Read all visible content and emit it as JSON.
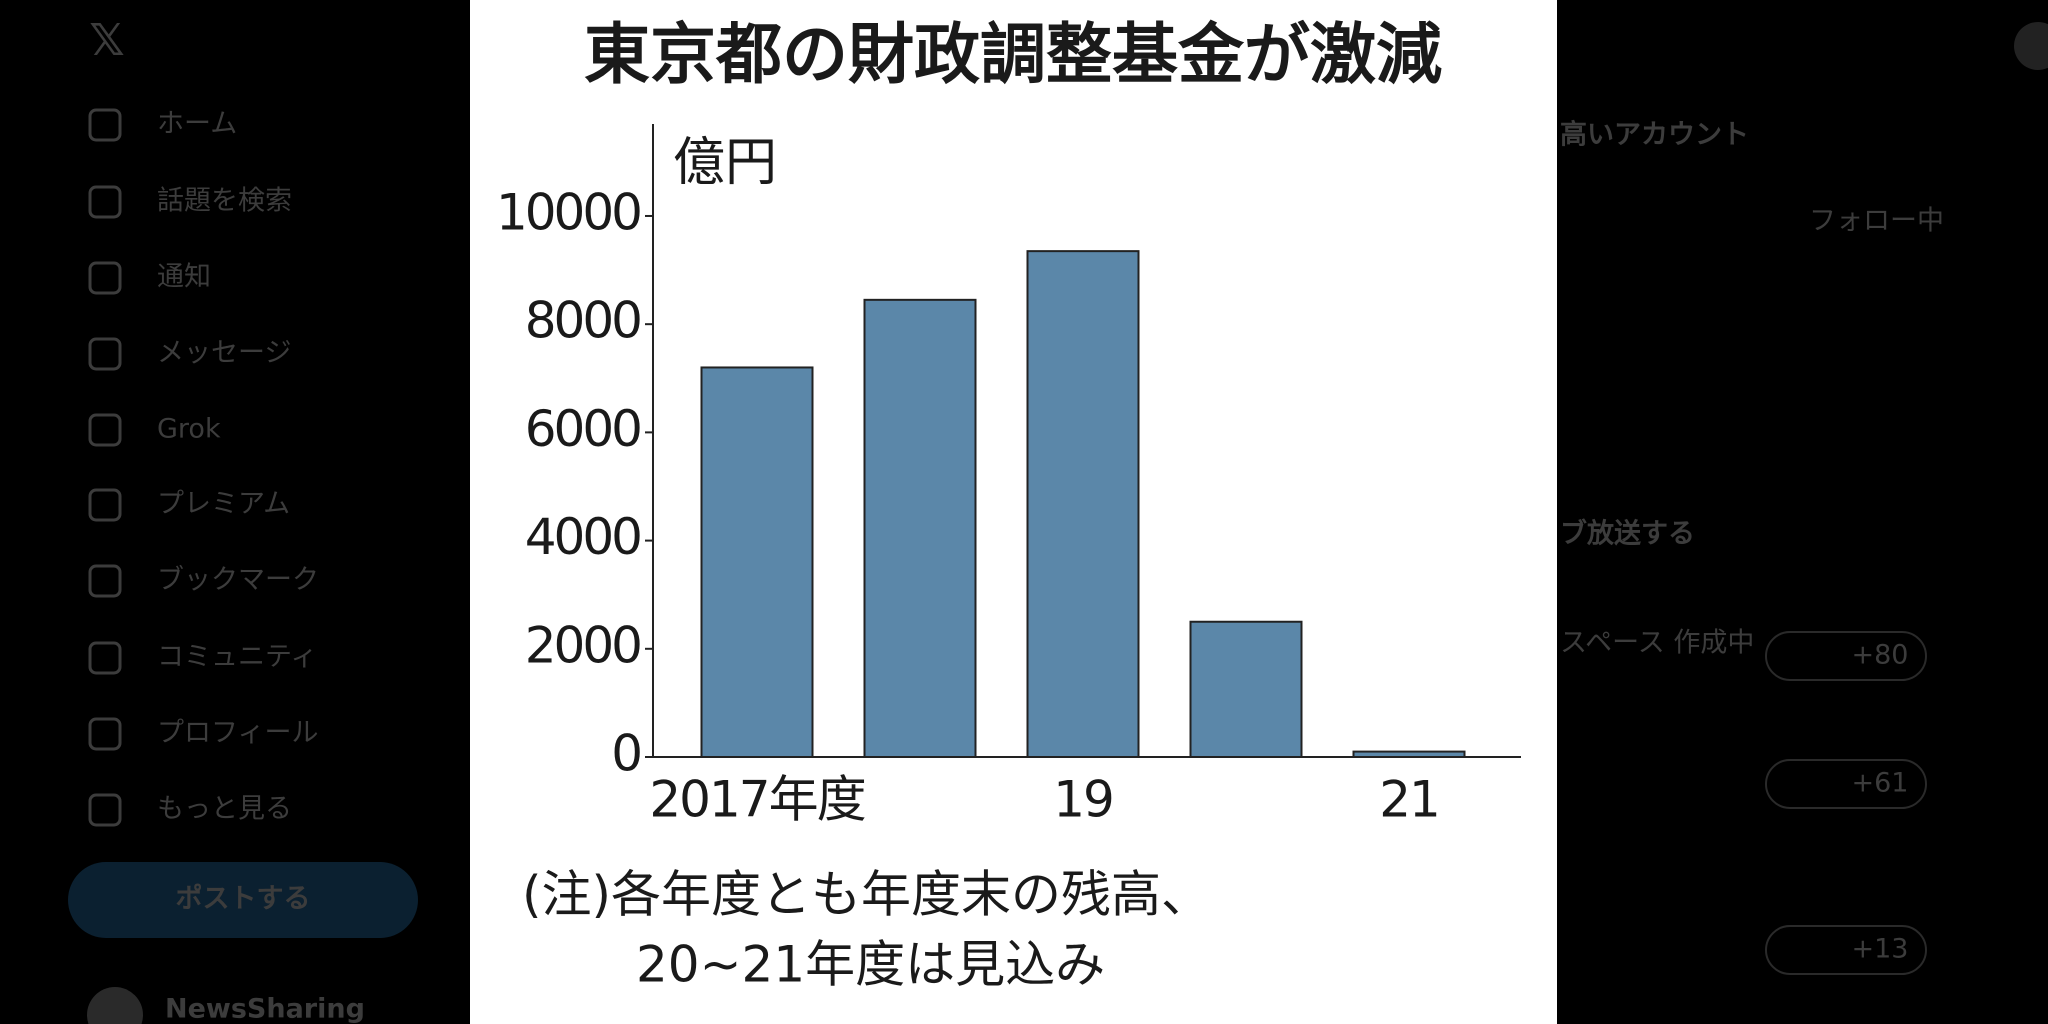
{
  "sidebar": {
    "nav": [
      "ホーム",
      "話題を検索",
      "通知",
      "メッセージ",
      "Grok",
      "プレミアム",
      "ブックマーク",
      "コミュニティ",
      "プロフィール",
      "もっと見る"
    ],
    "post_button": "ポストする",
    "account": "NewsSharing"
  },
  "right_panel": {
    "section_title": "高いアカウント",
    "follow_button": "フォロー中",
    "live_title": "ブ放送する",
    "space_status": "スペース 作成中",
    "listener_counts": [
      "+80",
      "+61",
      "+13"
    ]
  },
  "chart_data": {
    "type": "bar",
    "title": "東京都の財政調整基金が激減",
    "y_unit": "億円",
    "categories": [
      "2017年度",
      null,
      "19",
      null,
      "21"
    ],
    "values": [
      7200,
      8450,
      9350,
      2500,
      100
    ],
    "color": "#5b87a9",
    "ylim": [
      0,
      11700
    ],
    "yticks": [
      0,
      2000,
      4000,
      6000,
      8000,
      10000
    ],
    "notes": [
      "(注)各年度とも年度末の残高、",
      "20~21年度は見込み"
    ]
  }
}
